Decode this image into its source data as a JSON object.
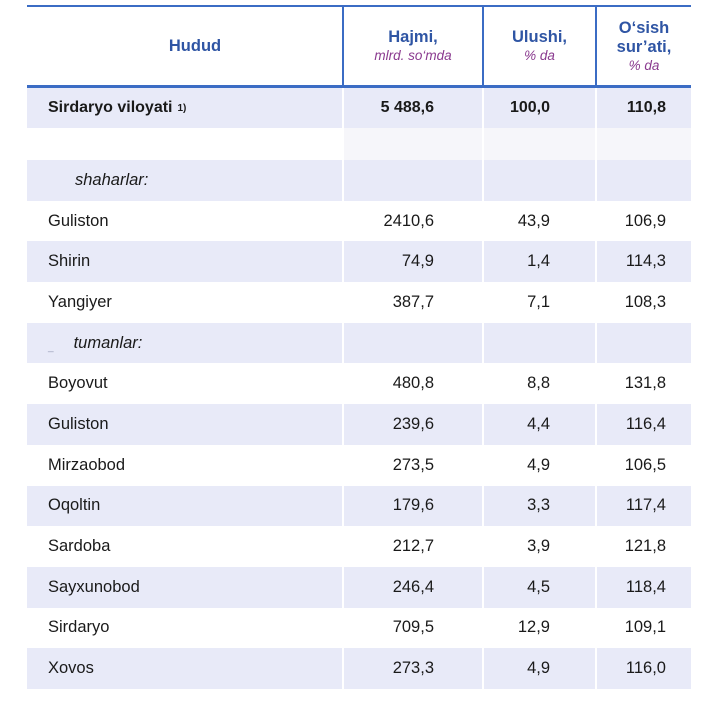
{
  "header": {
    "col1": "Hudud",
    "col2_title": "Hajmi,",
    "col2_sub": "mlrd. so‘mda",
    "col3_title": "Ulushi,",
    "col3_sub": "% da",
    "col4_title_a": "O‘sish",
    "col4_title_b": "sur’ati,",
    "col4_sub": "% da"
  },
  "total": {
    "name": "Sirdaryo viloyati",
    "note": "1)",
    "volume": "5 488,6",
    "share": "100,0",
    "growth": "110,8"
  },
  "sections": {
    "cities": "shaharlar:",
    "districts": "tumanlar:",
    "districts_mark": "_"
  },
  "cities": [
    {
      "name": "Guliston",
      "volume": "2410,6",
      "share": "43,9",
      "growth": "106,9"
    },
    {
      "name": "Shirin",
      "volume": "74,9",
      "share": "1,4",
      "growth": "114,3"
    },
    {
      "name": "Yangiyer",
      "volume": "387,7",
      "share": "7,1",
      "growth": "108,3"
    }
  ],
  "districts": [
    {
      "name": "Boyovut",
      "volume": "480,8",
      "share": "8,8",
      "growth": "131,8"
    },
    {
      "name": "Guliston",
      "volume": "239,6",
      "share": "4,4",
      "growth": "116,4"
    },
    {
      "name": "Mirzaobod",
      "volume": "273,5",
      "share": "4,9",
      "growth": "106,5"
    },
    {
      "name": "Oqoltin",
      "volume": "179,6",
      "share": "3,3",
      "growth": "117,4"
    },
    {
      "name": "Sardoba",
      "volume": "212,7",
      "share": "3,9",
      "growth": "121,8"
    },
    {
      "name": "Sayxunobod",
      "volume": "246,4",
      "share": "4,5",
      "growth": "118,4"
    },
    {
      "name": "Sirdaryo",
      "volume": "709,5",
      "share": "12,9",
      "growth": "109,1"
    },
    {
      "name": "Xovos",
      "volume": "273,3",
      "share": "4,9",
      "growth": "116,0"
    }
  ]
}
